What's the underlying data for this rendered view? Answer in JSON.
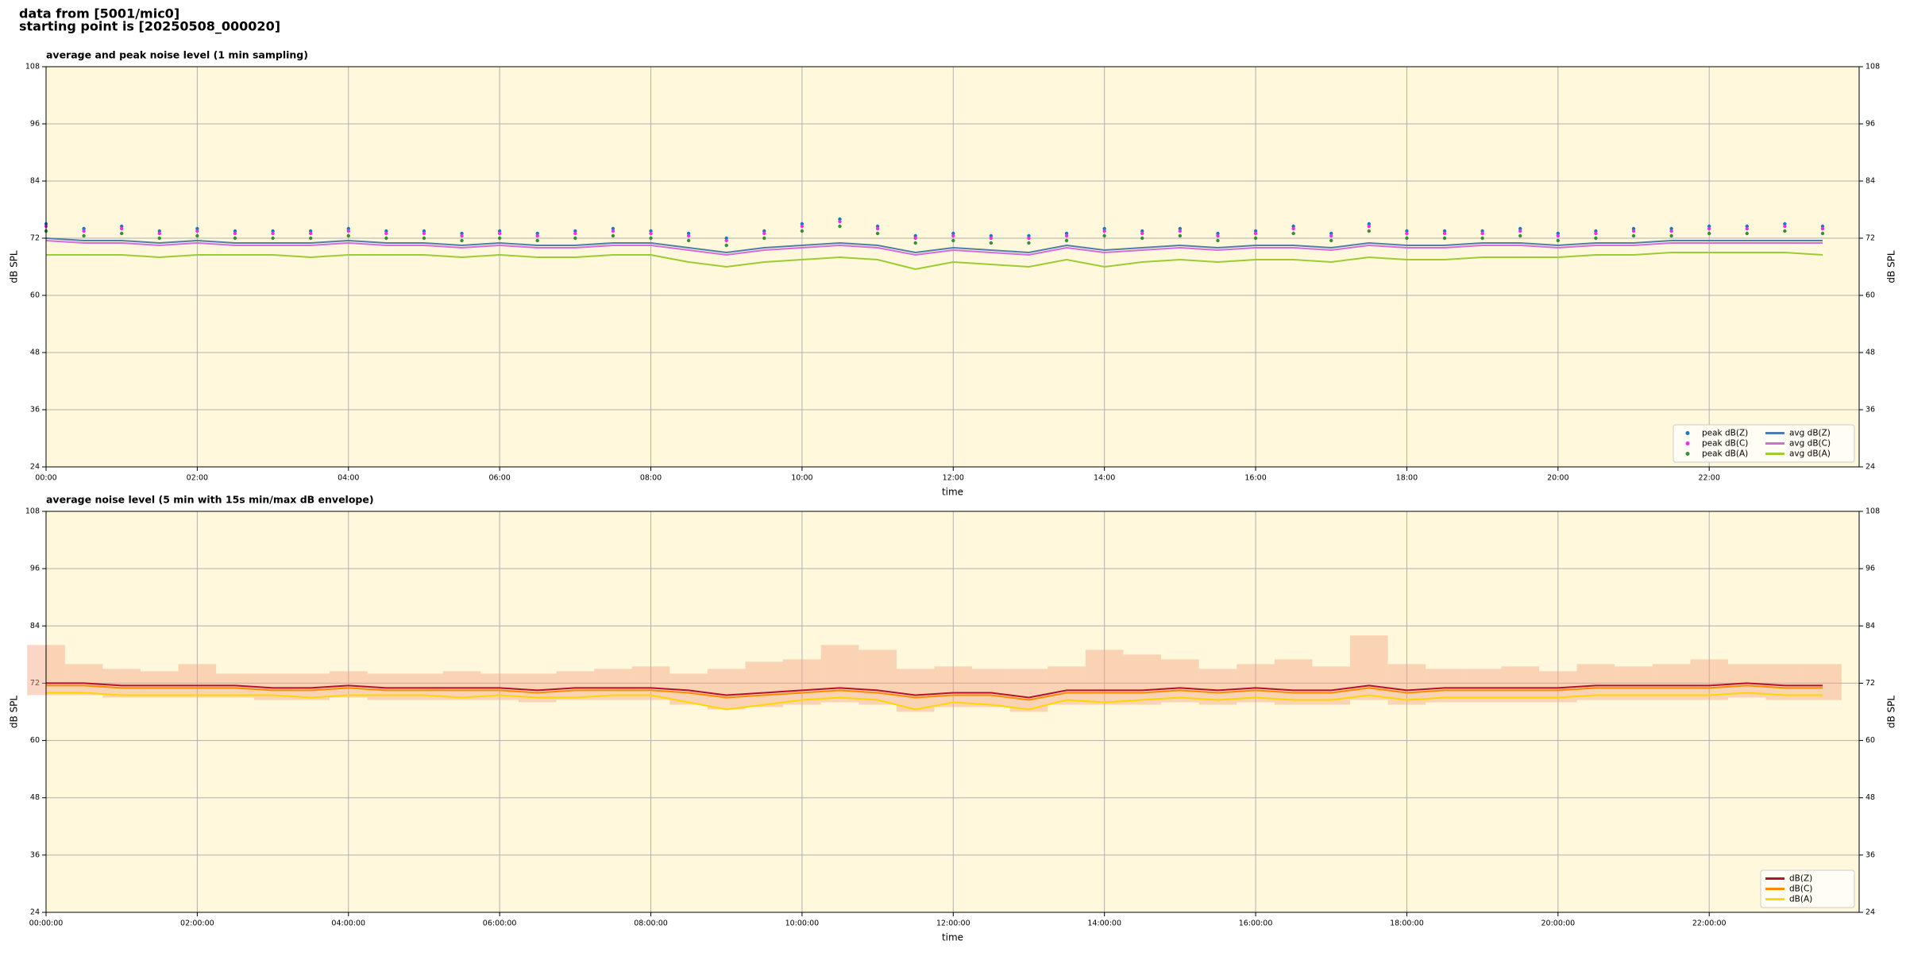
{
  "header": {
    "line1": "data from [5001/mic0]",
    "line2": "starting point is [20250508_000020]"
  },
  "chart_data": [
    {
      "type": "line",
      "title": "average and peak noise level (1 min sampling)",
      "xlabel": "time",
      "ylabel": "dB SPL",
      "y2label": "dB SPL",
      "xlim": [
        0,
        1439
      ],
      "ylim": [
        24,
        108
      ],
      "y2lim": [
        24,
        108
      ],
      "xticks": [
        {
          "value": 0,
          "label": "00:00"
        },
        {
          "value": 120,
          "label": "02:00"
        },
        {
          "value": 240,
          "label": "04:00"
        },
        {
          "value": 360,
          "label": "06:00"
        },
        {
          "value": 480,
          "label": "08:00"
        },
        {
          "value": 600,
          "label": "10:00"
        },
        {
          "value": 720,
          "label": "12:00"
        },
        {
          "value": 840,
          "label": "14:00"
        },
        {
          "value": 960,
          "label": "16:00"
        },
        {
          "value": 1080,
          "label": "18:00"
        },
        {
          "value": 1200,
          "label": "20:00"
        },
        {
          "value": 1320,
          "label": "22:00"
        }
      ],
      "yticks": [
        24,
        36,
        48,
        60,
        72,
        84,
        96,
        108
      ],
      "y2ticks": [
        24,
        36,
        48,
        60,
        72,
        84,
        96,
        108
      ],
      "grid": true,
      "background": "#fff8dc",
      "legend": "lower right",
      "legend_columns": 2,
      "x": [
        0,
        30,
        60,
        90,
        120,
        150,
        180,
        210,
        240,
        270,
        300,
        330,
        360,
        390,
        420,
        450,
        480,
        510,
        540,
        570,
        600,
        630,
        660,
        690,
        720,
        750,
        780,
        810,
        840,
        870,
        900,
        930,
        960,
        990,
        1020,
        1050,
        1080,
        1110,
        1140,
        1170,
        1200,
        1230,
        1260,
        1290,
        1320,
        1350,
        1380,
        1410
      ],
      "series": [
        {
          "name": "peak dB(Z)",
          "marker": "points",
          "color": "#1f77b4",
          "values": [
            75,
            74,
            74.5,
            73.5,
            74,
            73.5,
            73.5,
            73.5,
            74,
            73.5,
            73.5,
            73,
            73.5,
            73,
            73.5,
            74,
            73.5,
            73,
            72,
            73.5,
            75,
            76,
            74.5,
            72.5,
            73,
            72.5,
            72.5,
            73,
            74,
            73.5,
            74,
            73,
            73.5,
            74.5,
            73,
            75,
            73.5,
            73.5,
            73.5,
            74,
            73,
            73.5,
            74,
            74,
            74.5,
            74.5,
            75,
            74.5
          ]
        },
        {
          "name": "peak dB(C)",
          "marker": "points",
          "color": "#e633e6",
          "values": [
            74.5,
            73.5,
            74,
            73,
            73.5,
            73,
            73,
            73,
            73.5,
            73,
            73,
            72.5,
            73,
            72.5,
            73,
            73.5,
            73,
            72.5,
            71.5,
            73,
            74.5,
            75.5,
            74,
            72,
            72.5,
            72,
            72,
            72.5,
            73.5,
            73,
            73.5,
            72.5,
            73,
            74,
            72.5,
            74.5,
            73,
            73,
            73,
            73.5,
            72.5,
            73,
            73.5,
            73.5,
            74,
            74,
            74.5,
            74
          ]
        },
        {
          "name": "peak dB(A)",
          "marker": "points",
          "color": "#3c8c3c",
          "values": [
            73.5,
            72.5,
            73,
            72,
            72.5,
            72,
            72,
            72,
            72.5,
            72,
            72,
            71.5,
            72,
            71.5,
            72,
            72.5,
            72,
            71.5,
            70.5,
            72,
            73.5,
            74.5,
            73,
            71,
            71.5,
            71,
            71,
            71.5,
            72.5,
            72,
            72.5,
            71.5,
            72,
            73,
            71.5,
            73.5,
            72,
            72,
            72,
            72.5,
            71.5,
            72,
            72.5,
            72.5,
            73,
            73,
            73.5,
            73
          ]
        },
        {
          "name": "avg dB(Z)",
          "color": "#4f7fa8",
          "values": [
            72,
            71.5,
            71.5,
            71,
            71.5,
            71,
            71,
            71,
            71.5,
            71,
            71,
            70.5,
            71,
            70.5,
            70.5,
            71,
            71,
            70,
            69,
            70,
            70.5,
            71,
            70.5,
            69,
            70,
            69.5,
            69,
            70.5,
            69.5,
            70,
            70.5,
            70,
            70.5,
            70.5,
            70,
            71,
            70.5,
            70.5,
            71,
            71,
            70.5,
            71,
            71,
            71.5,
            71.5,
            71.5,
            71.5,
            71.5
          ]
        },
        {
          "name": "avg dB(C)",
          "color": "#d86bdc",
          "values": [
            71.5,
            71,
            71,
            70.5,
            71,
            70.5,
            70.5,
            70.5,
            71,
            70.5,
            70.5,
            70,
            70.5,
            70,
            70,
            70.5,
            70.5,
            69.5,
            68.5,
            69.5,
            70,
            70.5,
            70,
            68.5,
            69.5,
            69,
            68.5,
            70,
            69,
            69.5,
            70,
            69.5,
            70,
            70,
            69.5,
            70.5,
            70,
            70,
            70.5,
            70.5,
            70,
            70.5,
            70.5,
            71,
            71,
            71,
            71,
            71
          ]
        },
        {
          "name": "avg dB(A)",
          "color": "#9acd32",
          "values": [
            68.5,
            68.5,
            68.5,
            68,
            68.5,
            68.5,
            68.5,
            68,
            68.5,
            68.5,
            68.5,
            68,
            68.5,
            68,
            68,
            68.5,
            68.5,
            67,
            66,
            67,
            67.5,
            68,
            67.5,
            65.5,
            67,
            66.5,
            66,
            67.5,
            66,
            67,
            67.5,
            67,
            67.5,
            67.5,
            67,
            68,
            67.5,
            67.5,
            68,
            68,
            68,
            68.5,
            68.5,
            69,
            69,
            69,
            69,
            68.5
          ]
        }
      ]
    },
    {
      "type": "line",
      "title": "average noise level (5 min with 15s min/max dB envelope)",
      "xlabel": "time",
      "ylabel": "dB SPL",
      "y2label": "dB SPL",
      "xlim": [
        0,
        1439
      ],
      "ylim": [
        24,
        108
      ],
      "y2lim": [
        24,
        108
      ],
      "xticks": [
        {
          "value": 0,
          "label": "00:00:00"
        },
        {
          "value": 120,
          "label": "02:00:00"
        },
        {
          "value": 240,
          "label": "04:00:00"
        },
        {
          "value": 360,
          "label": "06:00:00"
        },
        {
          "value": 480,
          "label": "08:00:00"
        },
        {
          "value": 600,
          "label": "10:00:00"
        },
        {
          "value": 720,
          "label": "12:00:00"
        },
        {
          "value": 840,
          "label": "14:00:00"
        },
        {
          "value": 960,
          "label": "16:00:00"
        },
        {
          "value": 1080,
          "label": "18:00:00"
        },
        {
          "value": 1200,
          "label": "20:00:00"
        },
        {
          "value": 1320,
          "label": "22:00:00"
        }
      ],
      "yticks": [
        24,
        36,
        48,
        60,
        72,
        84,
        96,
        108
      ],
      "y2ticks": [
        24,
        36,
        48,
        60,
        72,
        84,
        96,
        108
      ],
      "grid": true,
      "background": "#fff8dc",
      "legend": "lower right",
      "legend_columns": 1,
      "x": [
        0,
        30,
        60,
        90,
        120,
        150,
        180,
        210,
        240,
        270,
        300,
        330,
        360,
        390,
        420,
        450,
        480,
        510,
        540,
        570,
        600,
        630,
        660,
        690,
        720,
        750,
        780,
        810,
        840,
        870,
        900,
        930,
        960,
        990,
        1020,
        1050,
        1080,
        1110,
        1140,
        1170,
        1200,
        1230,
        1260,
        1290,
        1320,
        1350,
        1380,
        1410
      ],
      "band": {
        "color": "#f4a582",
        "low": [
          69.5,
          69.5,
          69,
          69,
          69,
          69,
          68.5,
          68.5,
          69,
          68.5,
          68.5,
          68.5,
          68.5,
          68,
          68.5,
          68.5,
          68.5,
          67.5,
          66.5,
          67,
          67.5,
          68,
          67.5,
          66,
          67,
          67,
          66,
          67.5,
          67.5,
          67.5,
          68,
          67.5,
          68,
          67.5,
          67.5,
          68.5,
          67.5,
          68,
          68,
          68,
          68,
          68.5,
          68.5,
          68.5,
          68.5,
          69,
          68.5,
          68.5
        ],
        "high": [
          80,
          76,
          75,
          74.5,
          76,
          74,
          74,
          74,
          74.5,
          74,
          74,
          74.5,
          74,
          74,
          74.5,
          75,
          75.5,
          74,
          75,
          76.5,
          77,
          80,
          79,
          75,
          75.5,
          75,
          75,
          75.5,
          79,
          78,
          77,
          75,
          76,
          77,
          75.5,
          82,
          76,
          75,
          75,
          75.5,
          74.5,
          76,
          75.5,
          76,
          77,
          76,
          76,
          76
        ]
      },
      "series": [
        {
          "name": "dB(Z)",
          "color": "#b5112e",
          "values": [
            72,
            72,
            71.5,
            71.5,
            71.5,
            71.5,
            71,
            71,
            71.5,
            71,
            71,
            71,
            71,
            70.5,
            71,
            71,
            71,
            70.5,
            69.5,
            70,
            70.5,
            71,
            70.5,
            69.5,
            70,
            70,
            69,
            70.5,
            70.5,
            70.5,
            71,
            70.5,
            71,
            70.5,
            70.5,
            71.5,
            70.5,
            71,
            71,
            71,
            71,
            71.5,
            71.5,
            71.5,
            71.5,
            72,
            71.5,
            71.5
          ]
        },
        {
          "name": "dB(C)",
          "color": "#ff8c00",
          "values": [
            71.5,
            71.5,
            71,
            71,
            71,
            71,
            70.5,
            70.5,
            71,
            70.5,
            70.5,
            70.5,
            70.5,
            70,
            70.5,
            70.5,
            70.5,
            70,
            69,
            69.5,
            70,
            70.5,
            70,
            69,
            69.5,
            69.5,
            68.5,
            70,
            70,
            70,
            70.5,
            70,
            70.5,
            70,
            70,
            71,
            70,
            70.5,
            70.5,
            70.5,
            70.5,
            71,
            71,
            71,
            71,
            71.5,
            71,
            71
          ]
        },
        {
          "name": "dB(A)",
          "color": "#ffd700",
          "values": [
            70,
            70,
            69.5,
            69.5,
            69.5,
            69.5,
            69.5,
            69,
            69.5,
            69.5,
            69.5,
            69,
            69.5,
            69,
            69,
            69.5,
            69.5,
            68,
            66.5,
            67.5,
            68.5,
            69,
            68.5,
            66.5,
            68,
            67.5,
            66.5,
            68.5,
            68,
            68.5,
            69,
            68.5,
            69,
            68.5,
            68.5,
            69.5,
            68.5,
            69,
            69,
            69,
            69,
            69.5,
            69.5,
            69.5,
            69.5,
            70,
            69.5,
            69.5
          ]
        }
      ]
    }
  ]
}
